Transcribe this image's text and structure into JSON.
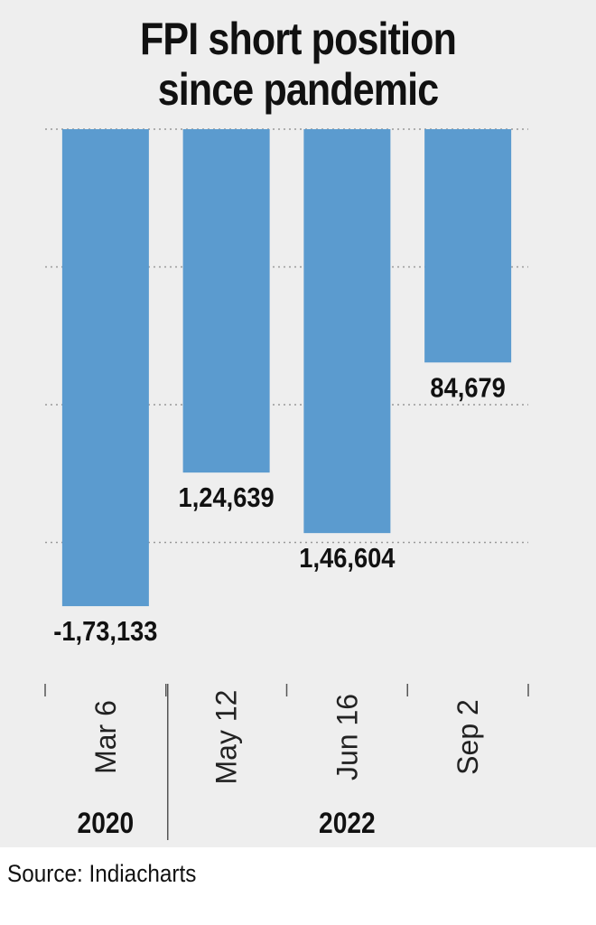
{
  "title": {
    "line1": "FPI short position",
    "line2": "since pandemic"
  },
  "source": "Source: Indiacharts",
  "colors": {
    "bar": "#5b9bcf",
    "panel": "#eeeeee",
    "text": "#111111",
    "grid": "#999999"
  },
  "chart_data": {
    "type": "bar",
    "categories": [
      "Mar 6",
      "May 12",
      "Jun 16",
      "Sep 2"
    ],
    "years": [
      {
        "label": "2020",
        "categories": [
          "Mar 6"
        ]
      },
      {
        "label": "2022",
        "categories": [
          "May 12",
          "Jun 16",
          "Sep 2"
        ]
      }
    ],
    "values": [
      -173133,
      -124639,
      -146604,
      -84679
    ],
    "data_labels": [
      "-1,73,133",
      "1,24,639",
      "1,46,604",
      "84,679"
    ],
    "ylim": [
      -200000,
      0
    ],
    "grid": true,
    "gridline_values": [
      0,
      -50000,
      -100000,
      -150000
    ]
  }
}
